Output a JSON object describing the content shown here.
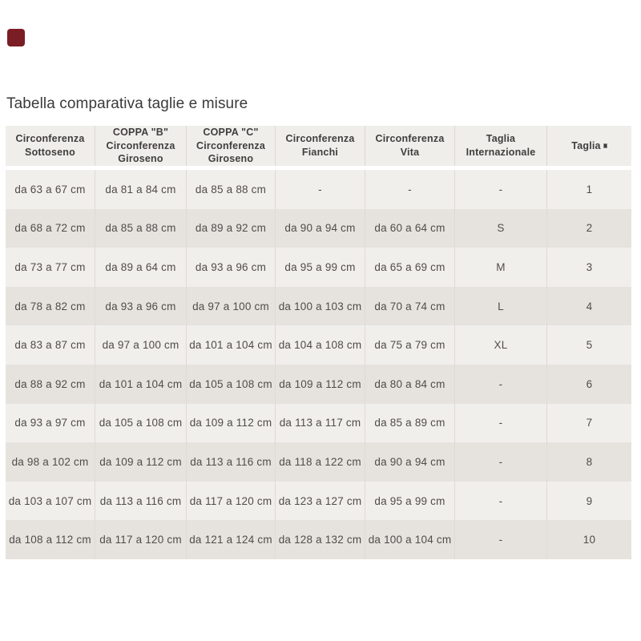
{
  "page": {
    "title": "Tabella comparativa taglie e misure"
  },
  "logo": {
    "color": "#7b1d24"
  },
  "colors": {
    "header_bg": "#f0eeeb",
    "row_light": "#f1efec",
    "row_dark": "#e6e3df",
    "separator": "#dedad6",
    "header_text": "#403e3c",
    "cell_text": "#4f4c49",
    "title_text": "#3a3a3a",
    "logo": "#7b1d24"
  },
  "chart_data": {
    "type": "table",
    "title": "Tabella comparativa taglie e misure",
    "columns": [
      "Circonferenza\nSottoseno",
      "COPPA \"B\"\nCirconferenza\nGiroseno",
      "COPPA \"C\"\nCirconferenza\nGiroseno",
      "Circonferenza\nFianchi",
      "Circonferenza Vita",
      "Taglia\nInternazionale",
      "Taglia"
    ],
    "header_glyph_box_column_index": 6,
    "rows": [
      [
        "da 63 a 67 cm",
        "da 81 a 84 cm",
        "da 85 a 88 cm",
        "-",
        "-",
        "-",
        "1"
      ],
      [
        "da 68 a 72 cm",
        "da 85 a 88 cm",
        "da 89 a 92 cm",
        "da 90 a 94 cm",
        "da 60 a 64 cm",
        "S",
        "2"
      ],
      [
        "da 73 a 77 cm",
        "da 89 a 64 cm",
        "da 93 a 96 cm",
        "da 95 a 99 cm",
        "da 65 a 69 cm",
        "M",
        "3"
      ],
      [
        "da 78 a 82 cm",
        "da 93 a 96 cm",
        "da 97 a 100 cm",
        "da 100 a 103 cm",
        "da 70 a 74 cm",
        "L",
        "4"
      ],
      [
        "da 83 a 87 cm",
        "da 97 a 100 cm",
        "da 101 a 104 cm",
        "da 104 a 108 cm",
        "da 75 a 79 cm",
        "XL",
        "5"
      ],
      [
        "da 88 a 92 cm",
        "da 101 a 104 cm",
        "da 105 a 108 cm",
        "da 109 a 112 cm",
        "da 80 a 84 cm",
        "-",
        "6"
      ],
      [
        "da 93 a 97 cm",
        "da 105 a 108 cm",
        "da 109 a 112 cm",
        "da 113 a 117 cm",
        "da 85 a 89 cm",
        "-",
        "7"
      ],
      [
        "da 98 a 102 cm",
        "da 109 a 112 cm",
        "da 113 a 116 cm",
        "da 118 a 122 cm",
        "da 90 a 94 cm",
        "-",
        "8"
      ],
      [
        "da 103 a 107 cm",
        "da 113 a 116 cm",
        "da 117 a 120 cm",
        "da 123 a 127 cm",
        "da 95 a 99 cm",
        "-",
        "9"
      ],
      [
        "da 108 a 112 cm",
        "da 117 a 120 cm",
        "da 121 a 124 cm",
        "da 128 a 132 cm",
        "da 100 a 104 cm",
        "-",
        "10"
      ]
    ]
  }
}
